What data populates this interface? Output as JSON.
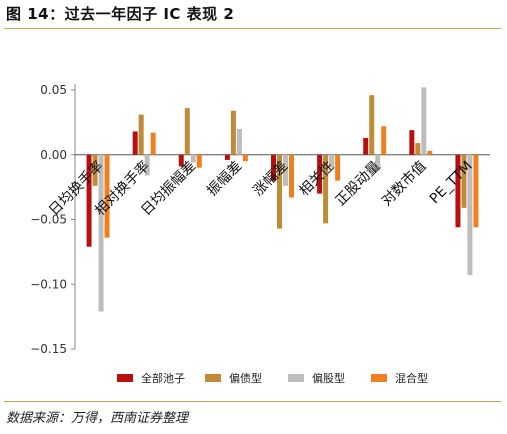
{
  "header": {
    "title": "图 14：过去一年因子 IC 表现 2"
  },
  "footer": {
    "source": "数据来源：万得，西南证券整理"
  },
  "colors": {
    "accent_rule": "#c9a24a"
  },
  "chart_data": {
    "type": "bar",
    "title": "",
    "xlabel": "",
    "ylabel": "",
    "ylim": [
      -0.15,
      0.05
    ],
    "yticks": [
      0.05,
      0.0,
      -0.05,
      -0.1,
      -0.15
    ],
    "ytick_labels": [
      "0.05",
      "0.00",
      "−0.05",
      "−0.10",
      "−0.15"
    ],
    "grid": false,
    "legend_position": "bottom",
    "categories": [
      "日均换手率",
      "相对换手率",
      "日均振幅差",
      "振幅差",
      "涨幅差",
      "相关性",
      "正股动量",
      "对数市值",
      "PE_TTM"
    ],
    "series": [
      {
        "name": "全部池子",
        "color": "#b80f10",
        "values": [
          -0.071,
          0.018,
          -0.009,
          -0.004,
          -0.02,
          -0.03,
          0.013,
          0.019,
          -0.056
        ]
      },
      {
        "name": "偏债型",
        "color": "#c08b37",
        "values": [
          -0.024,
          0.031,
          0.036,
          0.034,
          -0.057,
          -0.053,
          0.046,
          0.009,
          -0.041
        ]
      },
      {
        "name": "偏股型",
        "color": "#bdbdbd",
        "values": [
          -0.121,
          -0.016,
          -0.006,
          0.02,
          -0.024,
          -0.01,
          -0.012,
          0.052,
          -0.093
        ]
      },
      {
        "name": "混合型",
        "color": "#f07f1f",
        "values": [
          -0.064,
          0.017,
          -0.01,
          -0.005,
          -0.033,
          -0.02,
          0.022,
          0.003,
          -0.056
        ]
      }
    ]
  }
}
